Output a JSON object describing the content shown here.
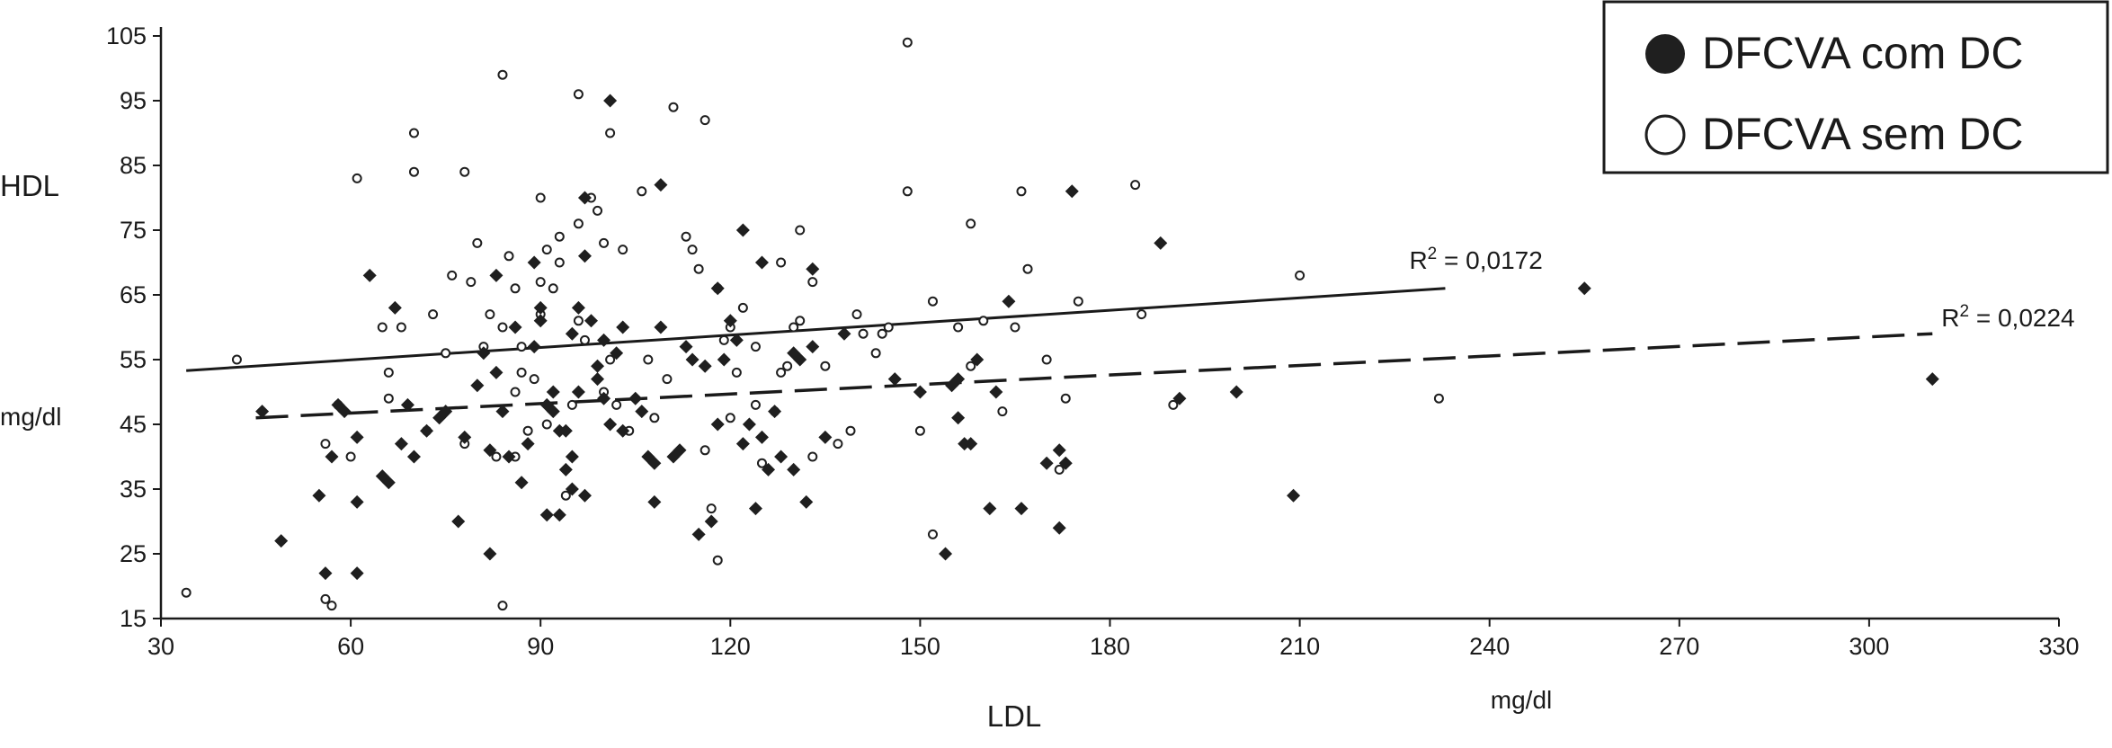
{
  "chart_data": {
    "type": "scatter",
    "ylabel": "HDL",
    "ylabel_unit": "mg/dl",
    "xlabel": "LDL",
    "xlabel_unit": "mg/dl",
    "xlim": [
      30,
      330
    ],
    "ylim": [
      15,
      105
    ],
    "x_ticks": [
      "30",
      "60",
      "90",
      "120",
      "150",
      "180",
      "210",
      "240",
      "270",
      "300",
      "330"
    ],
    "y_ticks": [
      "105",
      "95",
      "85",
      "75",
      "65",
      "55",
      "45",
      "35",
      "25",
      "15"
    ],
    "grid": false,
    "legend_position": "top-right",
    "colors": {
      "filled": "#1f1f1f",
      "open_stroke": "#1f1f1f",
      "open_fill": "#ffffff"
    },
    "series": [
      {
        "name": "DFCVA com DC",
        "marker": "filled-diamond",
        "points": [
          [
            46,
            47
          ],
          [
            49,
            27
          ],
          [
            55,
            34
          ],
          [
            56,
            22
          ],
          [
            57,
            40
          ],
          [
            58,
            48
          ],
          [
            59,
            47
          ],
          [
            61,
            22
          ],
          [
            61,
            33
          ],
          [
            61,
            43
          ],
          [
            63,
            68
          ],
          [
            65,
            37
          ],
          [
            66,
            36
          ],
          [
            67,
            63
          ],
          [
            68,
            42
          ],
          [
            69,
            48
          ],
          [
            70,
            40
          ],
          [
            72,
            44
          ],
          [
            74,
            46
          ],
          [
            75,
            47
          ],
          [
            77,
            30
          ],
          [
            78,
            43
          ],
          [
            80,
            51
          ],
          [
            81,
            56
          ],
          [
            82,
            25
          ],
          [
            82,
            41
          ],
          [
            83,
            53
          ],
          [
            83,
            68
          ],
          [
            84,
            47
          ],
          [
            85,
            40
          ],
          [
            86,
            60
          ],
          [
            87,
            36
          ],
          [
            88,
            42
          ],
          [
            89,
            57
          ],
          [
            89,
            70
          ],
          [
            90,
            63
          ],
          [
            90,
            61
          ],
          [
            91,
            31
          ],
          [
            91,
            48
          ],
          [
            92,
            47
          ],
          [
            92,
            50
          ],
          [
            93,
            31
          ],
          [
            93,
            44
          ],
          [
            94,
            38
          ],
          [
            94,
            44
          ],
          [
            95,
            35
          ],
          [
            95,
            40
          ],
          [
            95,
            59
          ],
          [
            96,
            50
          ],
          [
            96,
            63
          ],
          [
            97,
            34
          ],
          [
            97,
            71
          ],
          [
            97,
            80
          ],
          [
            98,
            61
          ],
          [
            99,
            52
          ],
          [
            99,
            54
          ],
          [
            100,
            49
          ],
          [
            100,
            58
          ],
          [
            101,
            45
          ],
          [
            101,
            95
          ],
          [
            102,
            56
          ],
          [
            103,
            60
          ],
          [
            103,
            44
          ],
          [
            105,
            49
          ],
          [
            106,
            47
          ],
          [
            107,
            40
          ],
          [
            108,
            33
          ],
          [
            108,
            39
          ],
          [
            109,
            60
          ],
          [
            109,
            82
          ],
          [
            111,
            40
          ],
          [
            112,
            41
          ],
          [
            113,
            57
          ],
          [
            114,
            55
          ],
          [
            115,
            28
          ],
          [
            116,
            54
          ],
          [
            117,
            30
          ],
          [
            118,
            45
          ],
          [
            118,
            66
          ],
          [
            119,
            55
          ],
          [
            120,
            61
          ],
          [
            121,
            58
          ],
          [
            122,
            42
          ],
          [
            122,
            75
          ],
          [
            123,
            45
          ],
          [
            124,
            32
          ],
          [
            125,
            43
          ],
          [
            125,
            70
          ],
          [
            126,
            38
          ],
          [
            127,
            47
          ],
          [
            128,
            40
          ],
          [
            130,
            38
          ],
          [
            130,
            56
          ],
          [
            131,
            55
          ],
          [
            132,
            33
          ],
          [
            133,
            69
          ],
          [
            133,
            57
          ],
          [
            135,
            43
          ],
          [
            138,
            59
          ],
          [
            146,
            52
          ],
          [
            150,
            50
          ],
          [
            154,
            25
          ],
          [
            155,
            51
          ],
          [
            156,
            52
          ],
          [
            156,
            46
          ],
          [
            157,
            42
          ],
          [
            158,
            42
          ],
          [
            159,
            55
          ],
          [
            161,
            32
          ],
          [
            162,
            50
          ],
          [
            164,
            64
          ],
          [
            166,
            32
          ],
          [
            170,
            39
          ],
          [
            172,
            29
          ],
          [
            172,
            41
          ],
          [
            173,
            39
          ],
          [
            174,
            81
          ],
          [
            188,
            73
          ],
          [
            191,
            49
          ],
          [
            200,
            50
          ],
          [
            209,
            34
          ],
          [
            255,
            66
          ],
          [
            310,
            52
          ]
        ]
      },
      {
        "name": "DFCVA sem DC",
        "marker": "open-circle",
        "points": [
          [
            34,
            19
          ],
          [
            42,
            55
          ],
          [
            56,
            18
          ],
          [
            56,
            42
          ],
          [
            57,
            17
          ],
          [
            58,
            48
          ],
          [
            60,
            40
          ],
          [
            61,
            83
          ],
          [
            65,
            60
          ],
          [
            66,
            53
          ],
          [
            66,
            49
          ],
          [
            68,
            60
          ],
          [
            70,
            90
          ],
          [
            70,
            84
          ],
          [
            72,
            44
          ],
          [
            73,
            62
          ],
          [
            75,
            56
          ],
          [
            76,
            68
          ],
          [
            78,
            42
          ],
          [
            78,
            84
          ],
          [
            79,
            67
          ],
          [
            80,
            73
          ],
          [
            81,
            57
          ],
          [
            82,
            62
          ],
          [
            83,
            40
          ],
          [
            84,
            99
          ],
          [
            84,
            60
          ],
          [
            84,
            17
          ],
          [
            85,
            71
          ],
          [
            86,
            66
          ],
          [
            86,
            40
          ],
          [
            86,
            50
          ],
          [
            87,
            57
          ],
          [
            87,
            53
          ],
          [
            88,
            44
          ],
          [
            89,
            52
          ],
          [
            90,
            80
          ],
          [
            90,
            62
          ],
          [
            90,
            67
          ],
          [
            91,
            72
          ],
          [
            91,
            45
          ],
          [
            92,
            66
          ],
          [
            93,
            70
          ],
          [
            93,
            74
          ],
          [
            94,
            34
          ],
          [
            95,
            48
          ],
          [
            96,
            61
          ],
          [
            96,
            76
          ],
          [
            96,
            96
          ],
          [
            97,
            58
          ],
          [
            98,
            80
          ],
          [
            99,
            78
          ],
          [
            100,
            50
          ],
          [
            100,
            73
          ],
          [
            101,
            90
          ],
          [
            101,
            55
          ],
          [
            102,
            48
          ],
          [
            103,
            72
          ],
          [
            104,
            44
          ],
          [
            106,
            81
          ],
          [
            107,
            55
          ],
          [
            108,
            46
          ],
          [
            110,
            52
          ],
          [
            111,
            94
          ],
          [
            113,
            74
          ],
          [
            114,
            72
          ],
          [
            115,
            69
          ],
          [
            116,
            92
          ],
          [
            116,
            41
          ],
          [
            117,
            32
          ],
          [
            118,
            24
          ],
          [
            118,
            66
          ],
          [
            119,
            58
          ],
          [
            120,
            46
          ],
          [
            120,
            60
          ],
          [
            121,
            53
          ],
          [
            122,
            63
          ],
          [
            124,
            57
          ],
          [
            124,
            48
          ],
          [
            125,
            39
          ],
          [
            127,
            47
          ],
          [
            128,
            53
          ],
          [
            128,
            70
          ],
          [
            129,
            54
          ],
          [
            130,
            60
          ],
          [
            131,
            61
          ],
          [
            131,
            75
          ],
          [
            133,
            67
          ],
          [
            133,
            40
          ],
          [
            135,
            54
          ],
          [
            137,
            42
          ],
          [
            139,
            44
          ],
          [
            140,
            62
          ],
          [
            141,
            59
          ],
          [
            143,
            56
          ],
          [
            144,
            59
          ],
          [
            145,
            60
          ],
          [
            148,
            104
          ],
          [
            148,
            81
          ],
          [
            150,
            44
          ],
          [
            152,
            28
          ],
          [
            152,
            64
          ],
          [
            156,
            60
          ],
          [
            158,
            76
          ],
          [
            158,
            54
          ],
          [
            160,
            61
          ],
          [
            163,
            47
          ],
          [
            165,
            60
          ],
          [
            166,
            81
          ],
          [
            167,
            69
          ],
          [
            170,
            55
          ],
          [
            172,
            38
          ],
          [
            173,
            49
          ],
          [
            175,
            64
          ],
          [
            184,
            82
          ],
          [
            185,
            62
          ],
          [
            190,
            48
          ],
          [
            210,
            68
          ],
          [
            232,
            49
          ]
        ]
      }
    ],
    "trendlines": [
      {
        "series": "DFCVA sem DC",
        "style": "solid",
        "x": [
          34,
          233
        ],
        "y": [
          53.3,
          66.0
        ],
        "label": "R² = 0,0172"
      },
      {
        "series": "DFCVA com DC",
        "style": "dashed",
        "x": [
          45,
          310
        ],
        "y": [
          46.0,
          59.0
        ],
        "label": "R² = 0,0224"
      }
    ]
  }
}
